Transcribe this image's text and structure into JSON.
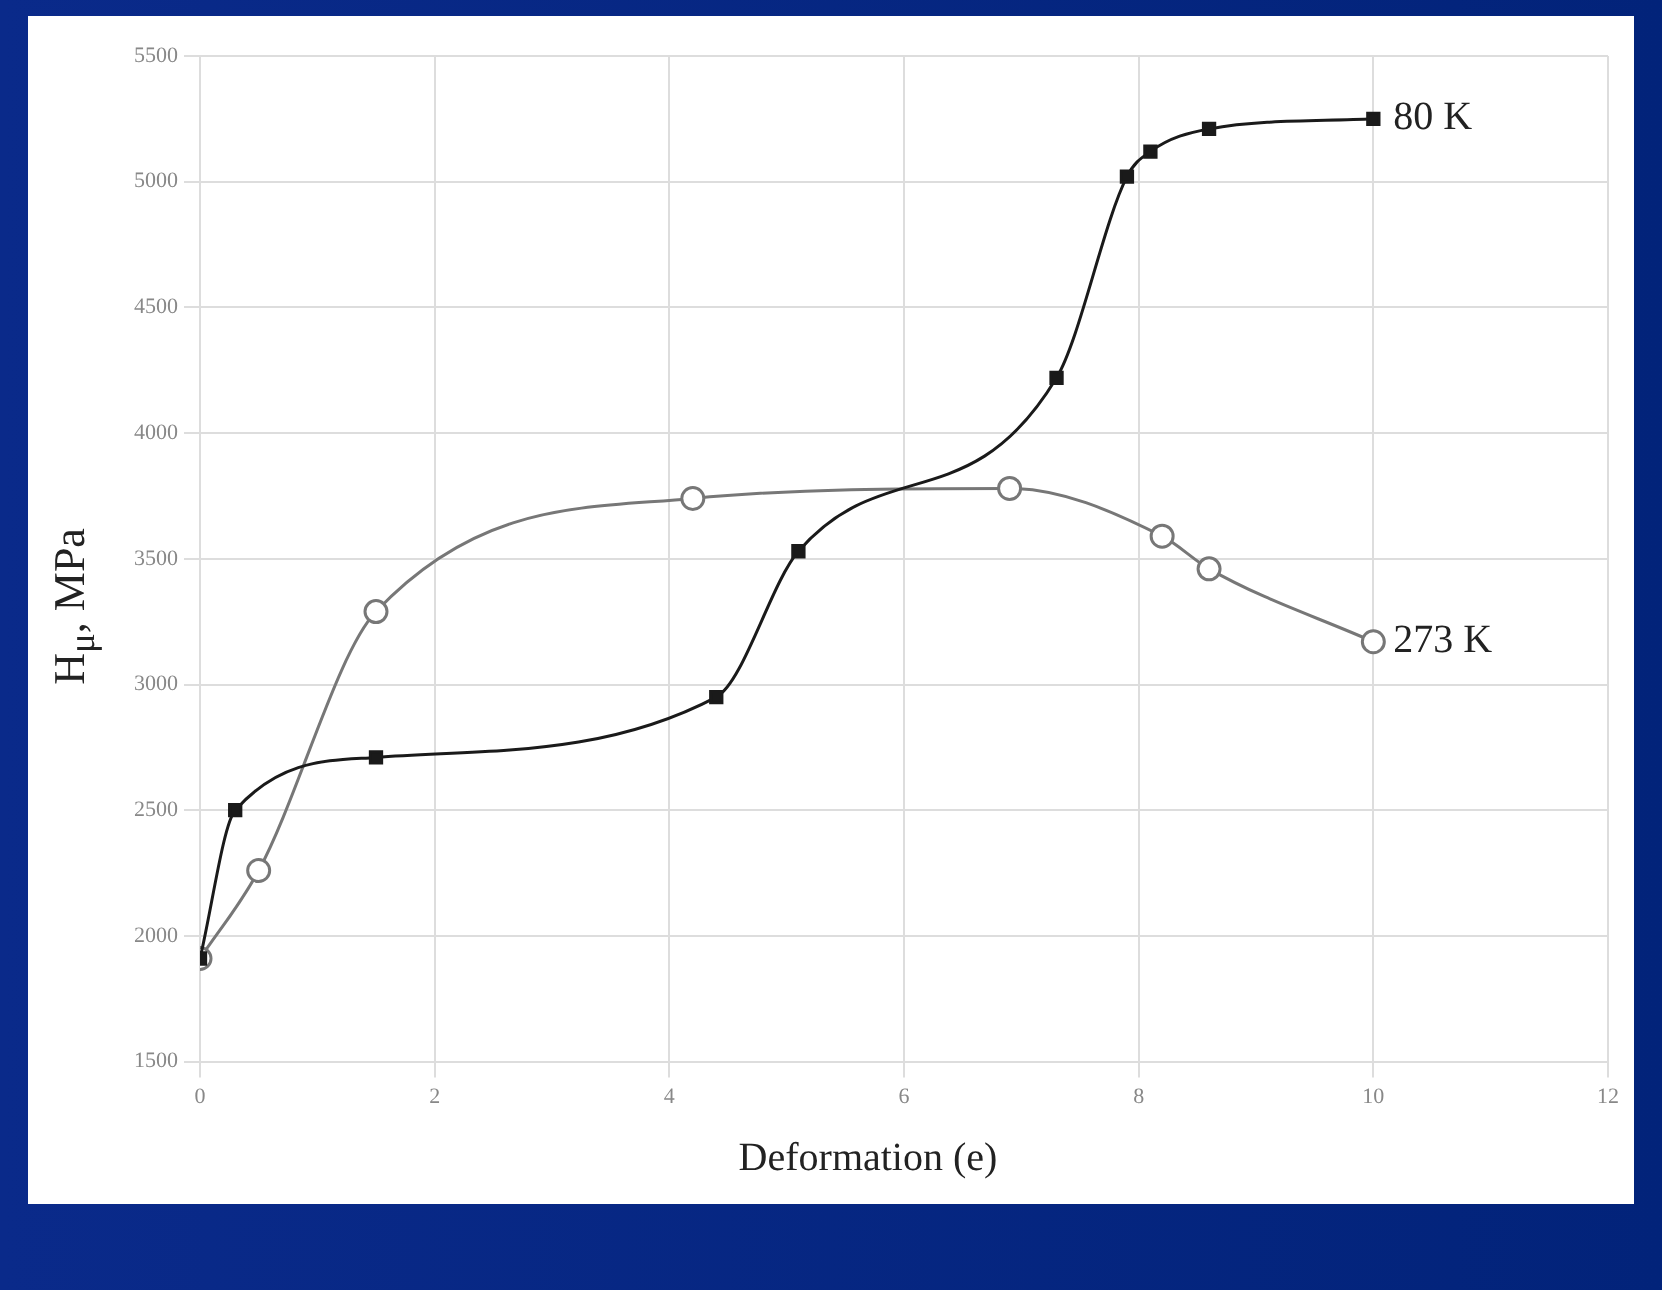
{
  "chart_data": {
    "type": "line",
    "xlabel": "Deformation (e)",
    "ylabel": "H$_{μ}$, MPa",
    "xlim": [
      0,
      12
    ],
    "xticks": [
      0,
      2,
      4,
      6,
      8,
      10,
      12
    ],
    "ylim": [
      1500,
      5500
    ],
    "yticks": [
      1500,
      2000,
      2500,
      3000,
      3500,
      4000,
      4500,
      5000,
      5500
    ],
    "grid": true,
    "legend": false,
    "series": [
      {
        "name": "80 K",
        "color": "#1a1a1a",
        "marker": "square",
        "x": [
          0,
          0.3,
          1.5,
          4.4,
          5.1,
          7.3,
          7.9,
          8.1,
          8.6,
          10
        ],
        "values": [
          1910,
          2500,
          2710,
          2950,
          3530,
          4220,
          5020,
          5120,
          5210,
          5250
        ]
      },
      {
        "name": "273 K",
        "color": "#777777",
        "marker": "circle",
        "x": [
          0,
          0.5,
          1.5,
          4.2,
          6.9,
          8.2,
          8.6,
          10
        ],
        "values": [
          1910,
          2260,
          3290,
          3740,
          3780,
          3590,
          3460,
          3170
        ]
      }
    ]
  }
}
